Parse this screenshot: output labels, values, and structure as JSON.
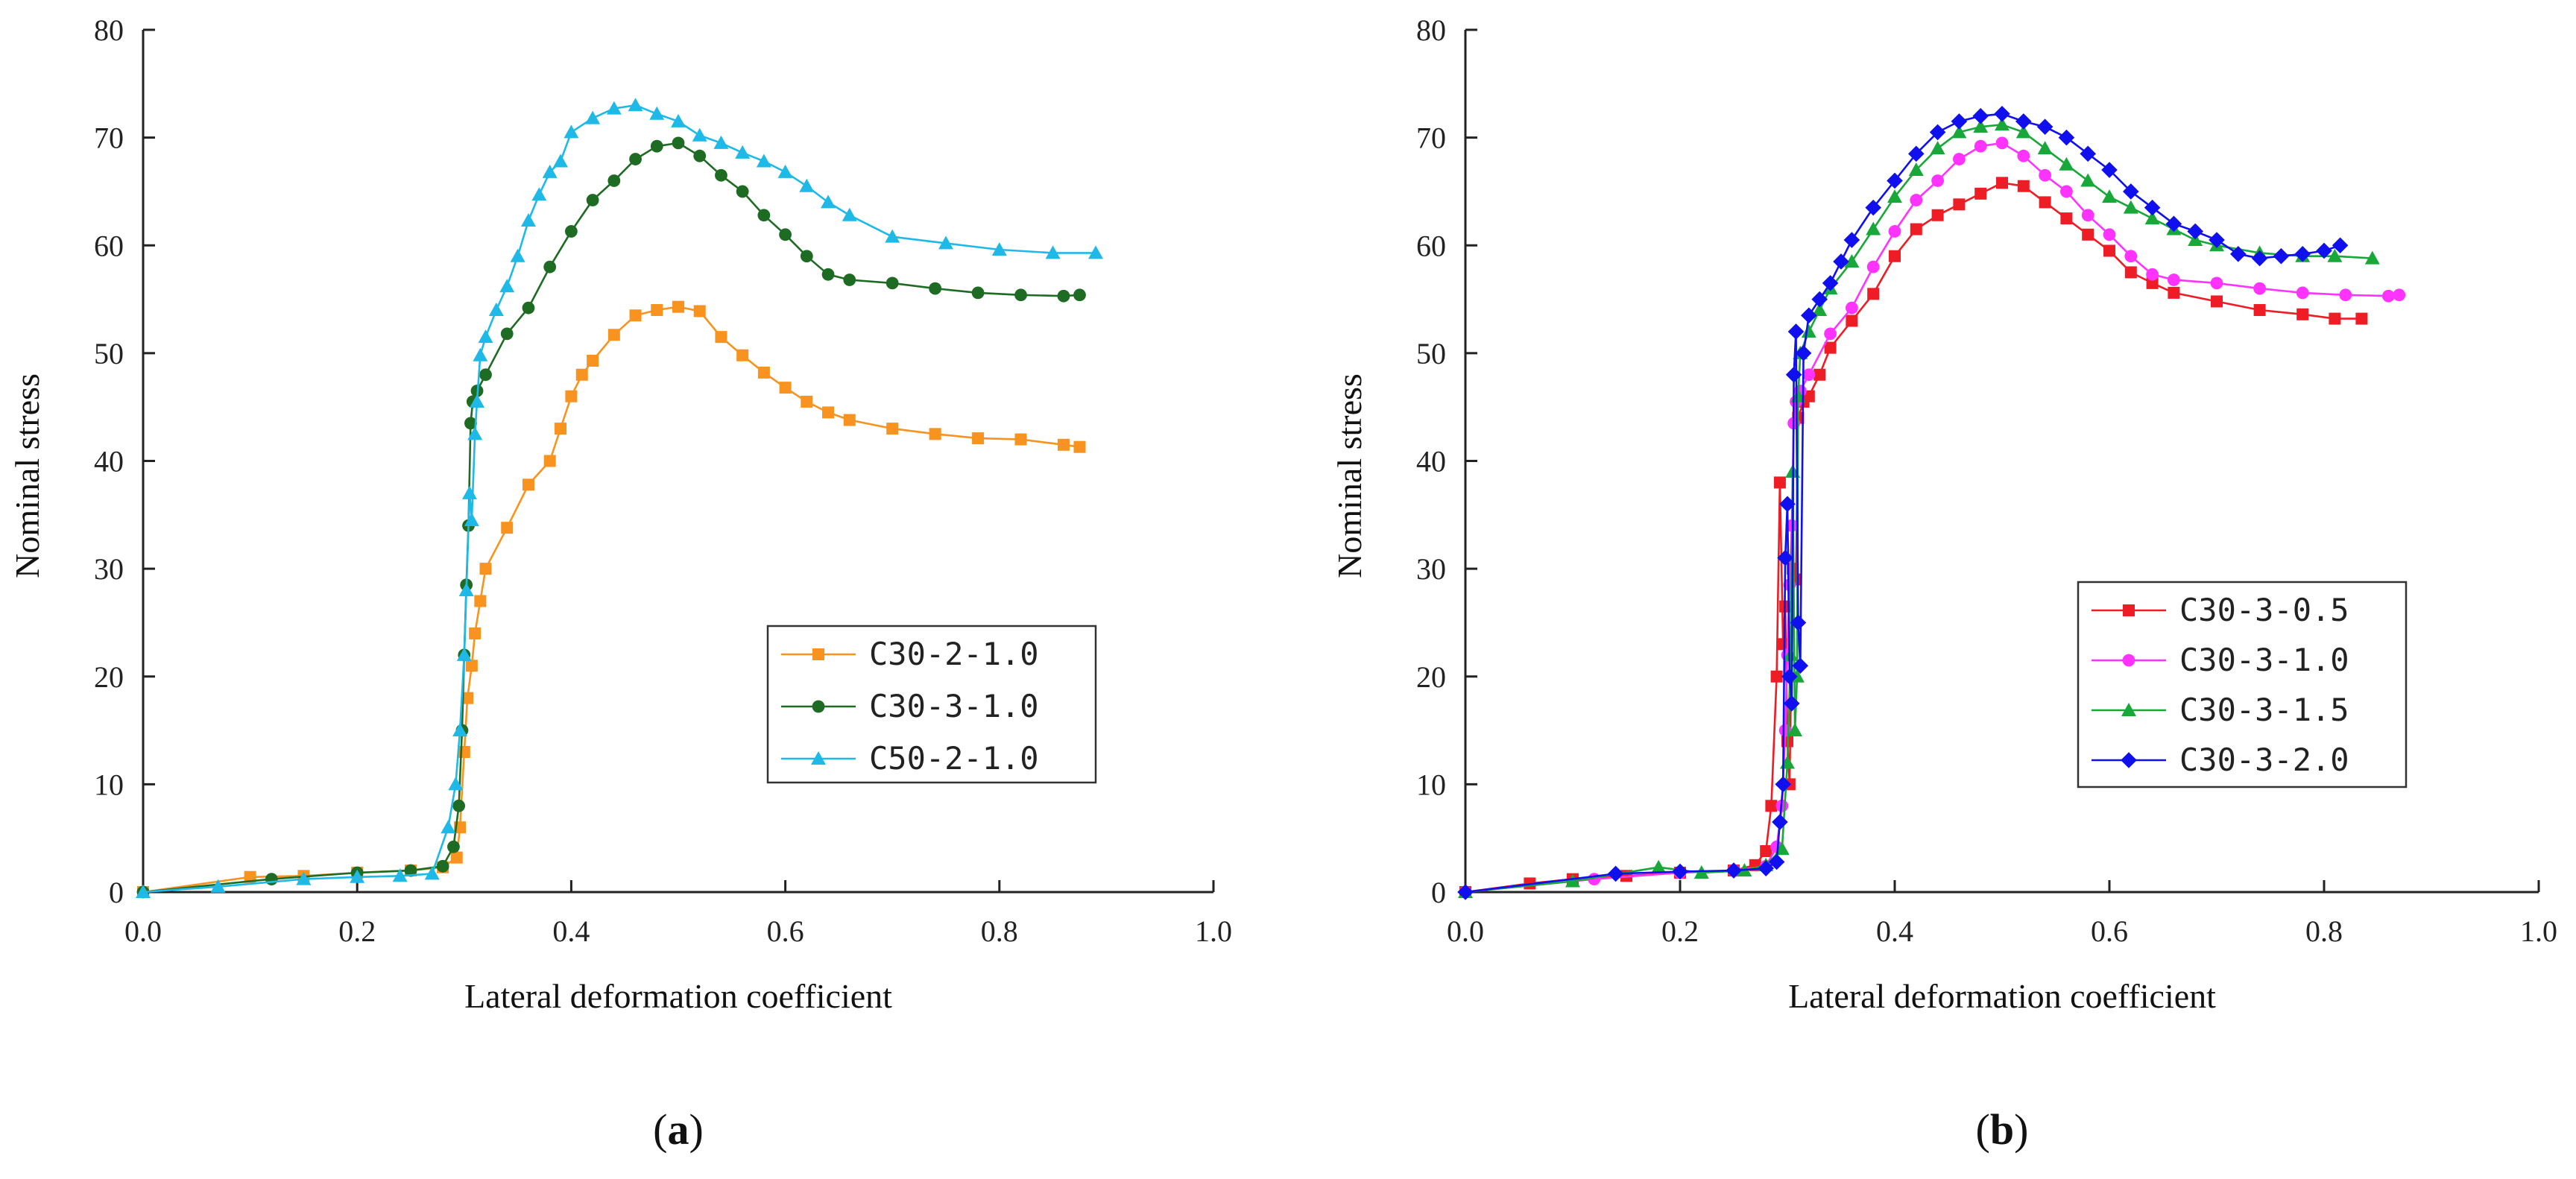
{
  "chart_data": [
    {
      "panel": "(a)",
      "panel_letter": "a",
      "type": "line",
      "xlabel": "Lateral deformation coefficient",
      "ylabel": "Nominal stress",
      "xlim": [
        0,
        1.0
      ],
      "ylim": [
        0,
        80
      ],
      "xticks": [
        "0.0",
        "0.2",
        "0.4",
        "0.6",
        "0.8",
        "1.0"
      ],
      "yticks": [
        "0",
        "10",
        "20",
        "30",
        "40",
        "50",
        "60",
        "70",
        "80"
      ],
      "legend_position": "center-right",
      "series": [
        {
          "name": "C30-2-1.0",
          "label": "C30-2-1.0",
          "color": "#F7931E",
          "marker": "square",
          "x": [
            0,
            0.1,
            0.15,
            0.2,
            0.25,
            0.28,
            0.293,
            0.296,
            0.3,
            0.303,
            0.307,
            0.31,
            0.315,
            0.32,
            0.34,
            0.36,
            0.38,
            0.39,
            0.4,
            0.41,
            0.42,
            0.44,
            0.46,
            0.48,
            0.5,
            0.52,
            0.54,
            0.56,
            0.58,
            0.6,
            0.62,
            0.64,
            0.66,
            0.7,
            0.74,
            0.78,
            0.82,
            0.86,
            0.875
          ],
          "y": [
            0,
            1.4,
            1.5,
            1.8,
            2.0,
            2.3,
            3.2,
            6.0,
            13.0,
            18.0,
            21.0,
            24.0,
            27.0,
            30.0,
            33.8,
            37.8,
            40.0,
            43.0,
            46.0,
            48.0,
            49.3,
            51.7,
            53.5,
            54.0,
            54.3,
            53.9,
            51.5,
            49.8,
            48.2,
            46.8,
            45.5,
            44.5,
            43.8,
            43.0,
            42.5,
            42.1,
            42.0,
            41.5,
            41.3
          ]
        },
        {
          "name": "C30-3-1.0",
          "label": "C30-3-1.0",
          "color": "#1E6B23",
          "marker": "circle",
          "x": [
            0,
            0.12,
            0.2,
            0.25,
            0.28,
            0.29,
            0.295,
            0.298,
            0.3,
            0.302,
            0.304,
            0.306,
            0.308,
            0.312,
            0.32,
            0.34,
            0.36,
            0.38,
            0.4,
            0.42,
            0.44,
            0.46,
            0.48,
            0.5,
            0.52,
            0.54,
            0.56,
            0.58,
            0.6,
            0.62,
            0.64,
            0.66,
            0.7,
            0.74,
            0.78,
            0.82,
            0.86,
            0.875
          ],
          "y": [
            0,
            1.2,
            1.8,
            2.0,
            2.4,
            4.2,
            8.0,
            15.0,
            22.0,
            28.5,
            34.0,
            43.5,
            45.5,
            46.5,
            48.0,
            51.8,
            54.2,
            58.0,
            61.3,
            64.2,
            66.0,
            68.0,
            69.2,
            69.5,
            68.3,
            66.5,
            65.0,
            62.8,
            61.0,
            59.0,
            57.3,
            56.8,
            56.5,
            56.0,
            55.6,
            55.4,
            55.3,
            55.4
          ]
        },
        {
          "name": "C50-2-1.0",
          "label": "C50-2-1.0",
          "color": "#1FB9E8",
          "marker": "triangle",
          "x": [
            0,
            0.07,
            0.15,
            0.2,
            0.24,
            0.27,
            0.285,
            0.292,
            0.296,
            0.3,
            0.302,
            0.305,
            0.307,
            0.31,
            0.312,
            0.315,
            0.32,
            0.33,
            0.34,
            0.35,
            0.36,
            0.37,
            0.38,
            0.39,
            0.4,
            0.42,
            0.44,
            0.46,
            0.48,
            0.5,
            0.52,
            0.54,
            0.56,
            0.58,
            0.6,
            0.62,
            0.64,
            0.66,
            0.7,
            0.75,
            0.8,
            0.85,
            0.89
          ],
          "y": [
            0,
            0.5,
            1.2,
            1.4,
            1.5,
            1.7,
            6.0,
            10.0,
            15.0,
            22.0,
            28.0,
            37.0,
            34.5,
            42.5,
            45.5,
            49.8,
            51.5,
            54.0,
            56.2,
            59.0,
            62.3,
            64.7,
            66.8,
            67.8,
            70.5,
            71.8,
            72.7,
            73.0,
            72.2,
            71.5,
            70.2,
            69.5,
            68.6,
            67.8,
            66.8,
            65.5,
            64.0,
            62.8,
            60.8,
            60.2,
            59.6,
            59.3,
            59.3
          ]
        }
      ]
    },
    {
      "panel": "(b)",
      "panel_letter": "b",
      "type": "line",
      "xlabel": "Lateral deformation coefficient",
      "ylabel": "Nominal stress",
      "xlim": [
        0,
        1.0
      ],
      "ylim": [
        0,
        80
      ],
      "xticks": [
        "0.0",
        "0.2",
        "0.4",
        "0.6",
        "0.8",
        "1.0"
      ],
      "yticks": [
        "0",
        "10",
        "20",
        "30",
        "40",
        "50",
        "60",
        "70",
        "80"
      ],
      "legend_position": "center-right",
      "series": [
        {
          "name": "C30-3-0.5",
          "label": "C30-3-0.5",
          "color": "#EE1C25",
          "marker": "square",
          "x": [
            0,
            0.06,
            0.1,
            0.15,
            0.2,
            0.25,
            0.27,
            0.28,
            0.285,
            0.29,
            0.293,
            0.296,
            0.298,
            0.3,
            0.302,
            0.305,
            0.308,
            0.31,
            0.315,
            0.32,
            0.33,
            0.34,
            0.36,
            0.38,
            0.4,
            0.42,
            0.44,
            0.46,
            0.48,
            0.5,
            0.52,
            0.54,
            0.56,
            0.58,
            0.6,
            0.62,
            0.64,
            0.66,
            0.7,
            0.74,
            0.78,
            0.81,
            0.835
          ],
          "y": [
            0,
            0.8,
            1.2,
            1.5,
            1.8,
            2.0,
            2.5,
            3.8,
            8.0,
            20.0,
            38.0,
            23.0,
            26.5,
            14.0,
            10.0,
            30.0,
            29.0,
            44.0,
            45.5,
            46.0,
            48.0,
            50.5,
            53.0,
            55.5,
            59.0,
            61.5,
            62.8,
            63.8,
            64.8,
            65.8,
            65.5,
            64.0,
            62.5,
            61.0,
            59.5,
            57.5,
            56.5,
            55.6,
            54.8,
            54.0,
            53.6,
            53.2,
            53.2
          ]
        },
        {
          "name": "C30-3-1.0",
          "label": "C30-3-1.0",
          "color": "#FF33FF",
          "marker": "circle",
          "x": [
            0,
            0.12,
            0.2,
            0.25,
            0.28,
            0.29,
            0.295,
            0.298,
            0.3,
            0.302,
            0.304,
            0.306,
            0.308,
            0.312,
            0.32,
            0.34,
            0.36,
            0.38,
            0.4,
            0.42,
            0.44,
            0.46,
            0.48,
            0.5,
            0.52,
            0.54,
            0.56,
            0.58,
            0.6,
            0.62,
            0.64,
            0.66,
            0.7,
            0.74,
            0.78,
            0.82,
            0.86,
            0.87
          ],
          "y": [
            0,
            1.2,
            1.8,
            2.0,
            2.4,
            4.2,
            8.0,
            15.0,
            22.0,
            28.5,
            34.0,
            43.5,
            45.5,
            46.5,
            48.0,
            51.8,
            54.2,
            58.0,
            61.3,
            64.2,
            66.0,
            68.0,
            69.2,
            69.5,
            68.3,
            66.5,
            65.0,
            62.8,
            61.0,
            59.0,
            57.3,
            56.8,
            56.5,
            56.0,
            55.6,
            55.4,
            55.3,
            55.4
          ]
        },
        {
          "name": "C30-3-1.5",
          "label": "C30-3-1.5",
          "color": "#18A83A",
          "marker": "triangle",
          "x": [
            0,
            0.1,
            0.18,
            0.22,
            0.26,
            0.28,
            0.295,
            0.3,
            0.303,
            0.305,
            0.307,
            0.309,
            0.31,
            0.312,
            0.32,
            0.33,
            0.34,
            0.36,
            0.38,
            0.4,
            0.42,
            0.44,
            0.46,
            0.48,
            0.5,
            0.52,
            0.54,
            0.56,
            0.58,
            0.6,
            0.62,
            0.64,
            0.66,
            0.68,
            0.7,
            0.74,
            0.78,
            0.81,
            0.845
          ],
          "y": [
            0,
            1.0,
            2.3,
            1.8,
            2.0,
            2.5,
            4.0,
            12.0,
            22.0,
            39.0,
            15.0,
            20.0,
            46.0,
            50.0,
            52.0,
            54.0,
            56.0,
            58.5,
            61.5,
            64.5,
            67.0,
            69.0,
            70.5,
            71.0,
            71.2,
            70.5,
            69.0,
            67.5,
            66.0,
            64.5,
            63.5,
            62.5,
            61.5,
            60.5,
            60.0,
            59.3,
            59.0,
            59.0,
            58.8
          ]
        },
        {
          "name": "C30-3-2.0",
          "label": "C30-3-2.0",
          "color": "#1010EE",
          "marker": "diamond",
          "x": [
            0,
            0.14,
            0.2,
            0.25,
            0.28,
            0.29,
            0.293,
            0.296,
            0.298,
            0.3,
            0.302,
            0.304,
            0.306,
            0.308,
            0.31,
            0.312,
            0.315,
            0.32,
            0.33,
            0.34,
            0.35,
            0.36,
            0.38,
            0.4,
            0.42,
            0.44,
            0.46,
            0.48,
            0.5,
            0.52,
            0.54,
            0.56,
            0.58,
            0.6,
            0.62,
            0.64,
            0.66,
            0.68,
            0.7,
            0.72,
            0.74,
            0.76,
            0.78,
            0.8,
            0.815
          ],
          "y": [
            0,
            1.7,
            1.9,
            2.0,
            2.2,
            2.8,
            6.5,
            10.0,
            31.0,
            36.0,
            20.0,
            17.5,
            48.0,
            52.0,
            25.0,
            21.0,
            50.0,
            53.5,
            55.0,
            56.5,
            58.5,
            60.5,
            63.5,
            66.0,
            68.5,
            70.5,
            71.5,
            72.0,
            72.2,
            71.5,
            71.0,
            70.0,
            68.5,
            67.0,
            65.0,
            63.5,
            62.0,
            61.3,
            60.5,
            59.2,
            58.8,
            59.0,
            59.2,
            59.5,
            60.0
          ]
        }
      ]
    }
  ]
}
